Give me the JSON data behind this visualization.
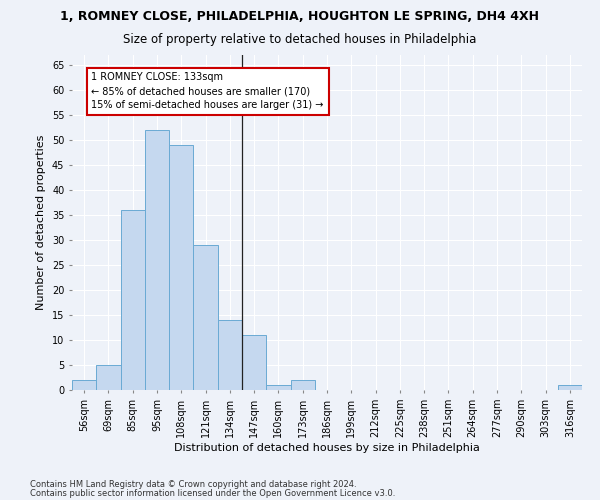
{
  "title1": "1, ROMNEY CLOSE, PHILADELPHIA, HOUGHTON LE SPRING, DH4 4XH",
  "title2": "Size of property relative to detached houses in Philadelphia",
  "xlabel": "Distribution of detached houses by size in Philadelphia",
  "ylabel": "Number of detached properties",
  "bin_labels": [
    "56sqm",
    "69sqm",
    "85sqm",
    "95sqm",
    "108sqm",
    "121sqm",
    "134sqm",
    "147sqm",
    "160sqm",
    "173sqm",
    "186sqm",
    "199sqm",
    "212sqm",
    "225sqm",
    "238sqm",
    "251sqm",
    "264sqm",
    "277sqm",
    "290sqm",
    "303sqm",
    "316sqm"
  ],
  "bar_values": [
    2,
    5,
    36,
    52,
    49,
    29,
    14,
    11,
    1,
    2,
    0,
    0,
    0,
    0,
    0,
    0,
    0,
    0,
    0,
    0,
    1
  ],
  "bar_color": "#c5d8ef",
  "bar_edge_color": "#6aaad4",
  "annotation_text": "1 ROMNEY CLOSE: 133sqm\n← 85% of detached houses are smaller (170)\n15% of semi-detached houses are larger (31) →",
  "annotation_box_color": "#ffffff",
  "annotation_box_edge": "#cc0000",
  "vline_x": 6.5,
  "ylim": [
    0,
    67
  ],
  "yticks": [
    0,
    5,
    10,
    15,
    20,
    25,
    30,
    35,
    40,
    45,
    50,
    55,
    60,
    65
  ],
  "footnote1": "Contains HM Land Registry data © Crown copyright and database right 2024.",
  "footnote2": "Contains public sector information licensed under the Open Government Licence v3.0.",
  "background_color": "#eef2f9",
  "plot_background": "#eef2f9",
  "grid_color": "#ffffff",
  "title1_fontsize": 9,
  "title2_fontsize": 8.5,
  "tick_fontsize": 7,
  "ylabel_fontsize": 8,
  "xlabel_fontsize": 8,
  "footnote_fontsize": 6,
  "annotation_fontsize": 7
}
